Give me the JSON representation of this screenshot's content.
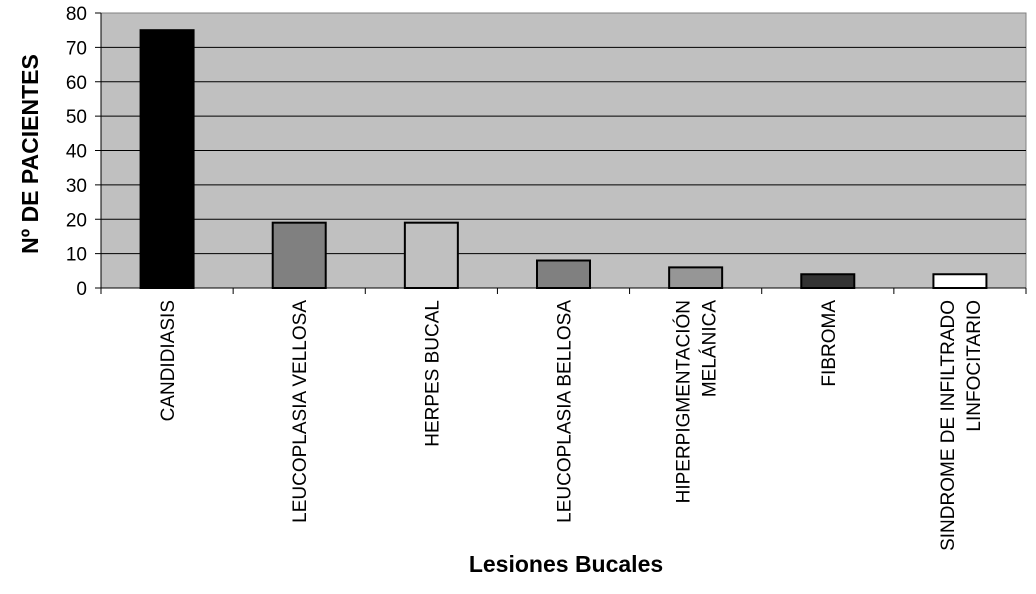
{
  "chart_data": {
    "type": "bar",
    "title": "",
    "xlabel": "Lesiones Bucales",
    "ylabel": "Nº DE PACIENTES",
    "ylim": [
      0,
      80
    ],
    "yticks": [
      "0",
      "10",
      "20",
      "30",
      "40",
      "50",
      "60",
      "70",
      "80"
    ],
    "grid": true,
    "legend": "none",
    "plot_background": "#c0c0c0",
    "categories": [
      [
        "CANDIDIASIS"
      ],
      [
        "LEUCOPLASIA VELLOSA"
      ],
      [
        "HERPES BUCAL"
      ],
      [
        "LEUCOPLASIA BELLOSA"
      ],
      [
        "HIPERPIGMENTACIÓN",
        "MELÁNICA"
      ],
      [
        "FIBROMA"
      ],
      [
        "SINDROME DE INFILTRADO",
        "LINFOCITARIO"
      ]
    ],
    "values": [
      75,
      19,
      19,
      8,
      6,
      4,
      4
    ],
    "bar_colors": [
      "#000000",
      "#808080",
      "#c0c0c0",
      "#808080",
      "#969696",
      "#333333",
      "#ffffff"
    ]
  }
}
